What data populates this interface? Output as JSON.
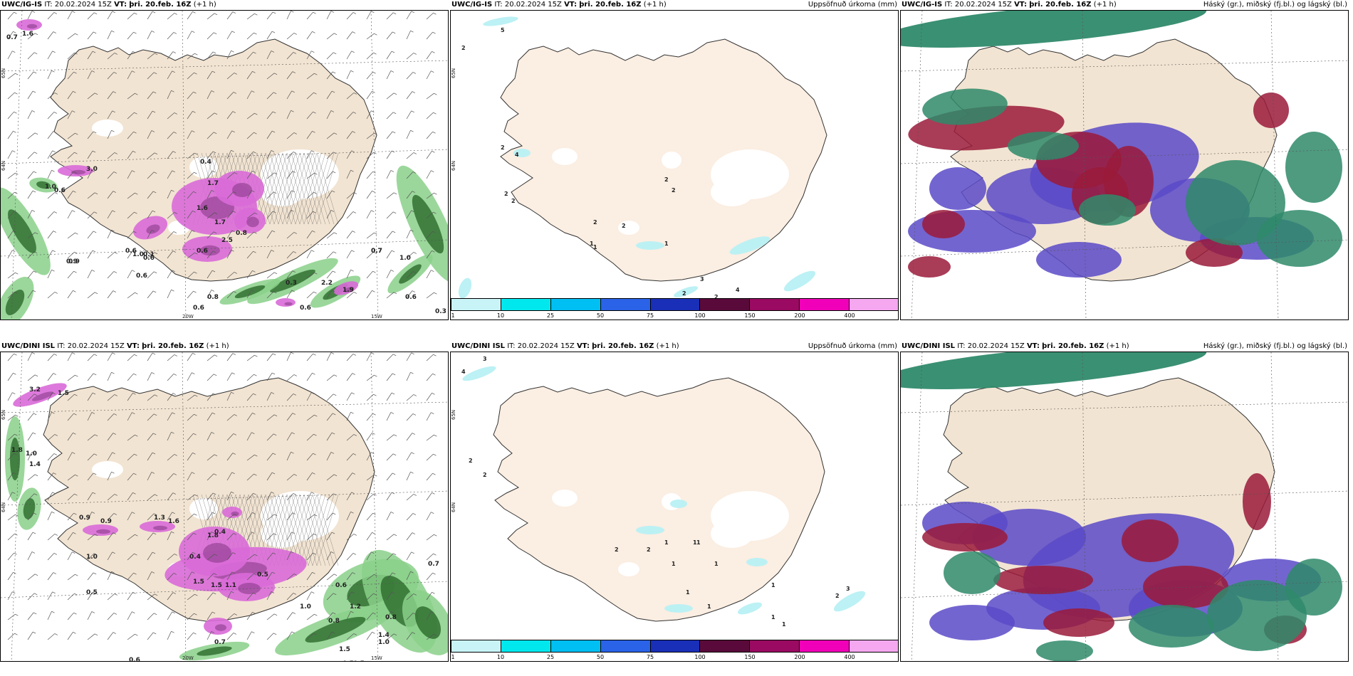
{
  "panels": [
    {
      "id": "p1",
      "model": "UWC/IG-IS",
      "it_label": "IT:",
      "it_value": "20.02.2024 15Z",
      "vt_label": "VT:",
      "vt_value": "þri. 20.feb. 16Z",
      "lead": "(+1 h)",
      "right_title": "",
      "kind": "precip-wind",
      "labels": [
        "0.7",
        "1.6",
        "3.0",
        "1.0",
        "0.6",
        "0.9",
        "0.6",
        "0.1",
        "0.4",
        "1.7",
        "1.6",
        "0.6",
        "1.7",
        "0.8",
        "2.5",
        "1.0",
        "0.6",
        "0.9",
        "0.6",
        "0.8",
        "0.3",
        "2.2",
        "1.9",
        "0.7",
        "1.0",
        "0.7",
        "0.6",
        "0.6",
        "0.3",
        "0.6"
      ],
      "coords": [
        "65N",
        "64N",
        "20W",
        "15W"
      ]
    },
    {
      "id": "p2",
      "model": "UWC/IG-IS",
      "it_label": "IT:",
      "it_value": "20.02.2024 15Z",
      "vt_label": "VT:",
      "vt_value": "þri. 20.feb. 16Z",
      "lead": "(+1 h)",
      "right_title": "Uppsöfnuð úrkoma (mm)",
      "kind": "accum",
      "labels": [
        "5",
        "2",
        "2",
        "4",
        "2",
        "2",
        "2",
        "2",
        "1",
        "1",
        "2",
        "2",
        "1",
        "3",
        "4",
        "2",
        "2",
        "2"
      ],
      "coords": [
        "65N",
        "64N"
      ]
    },
    {
      "id": "p3",
      "model": "UWC/IG-IS",
      "it_label": "IT:",
      "it_value": "20.02.2024 15Z",
      "vt_label": "VT:",
      "vt_value": "þri. 20.feb. 16Z",
      "lead": "(+1 h)",
      "right_title": "Háský (gr.), miðský (fj.bl.) og lágský (bl.)",
      "kind": "cloud"
    },
    {
      "id": "p4",
      "model": "UWC/DINI ISL",
      "it_label": "IT:",
      "it_value": "20.02.2024 15Z",
      "vt_label": "VT:",
      "vt_value": "þri. 20.feb. 16Z",
      "lead": "(+1 h)",
      "right_title": "",
      "kind": "precip-wind",
      "labels": [
        "3.2",
        "1.5",
        "1.8",
        "1.0",
        "1.4",
        "0.9",
        "0.9",
        "1.3",
        "1.6",
        "1.0",
        "0.4",
        "1.8",
        "0.5",
        "0.4",
        "1.5",
        "1.1",
        "1.5",
        "0.5",
        "0.7",
        "1.0",
        "1.2",
        "0.8",
        "1.4",
        "0.6",
        "0.5",
        "1.0",
        "0.6",
        "0.8",
        "1.5",
        "0.7",
        "0.5",
        "0.6"
      ],
      "coords": [
        "65N",
        "64N",
        "20W",
        "15W"
      ]
    },
    {
      "id": "p5",
      "model": "UWC/DINI ISL",
      "it_label": "IT:",
      "it_value": "20.02.2024 15Z",
      "vt_label": "VT:",
      "vt_value": "þri. 20.feb. 16Z",
      "lead": "(+1 h)",
      "right_title": "Uppsöfnuð úrkoma (mm)",
      "kind": "accum",
      "labels": [
        "3",
        "4",
        "2",
        "2",
        "2",
        "2",
        "1",
        "1",
        "1",
        "1",
        "1",
        "1",
        "1",
        "1",
        "1",
        "1",
        "2",
        "3"
      ],
      "coords": [
        "65N",
        "64N"
      ]
    },
    {
      "id": "p6",
      "model": "UWC/DINI ISL",
      "it_label": "IT:",
      "it_value": "20.02.2024 15Z",
      "vt_label": "VT:",
      "vt_value": "þri. 20.feb. 16Z",
      "lead": "(+1 h)",
      "right_title": "Háský (gr.), miðský (fj.bl.) og lágský (bl.)",
      "kind": "cloud"
    }
  ],
  "colorbar": {
    "labels": [
      "1",
      "10",
      "25",
      "50",
      "75",
      "100",
      "150",
      "200",
      "400"
    ],
    "colors": [
      "#c9f4f7",
      "#00e8ee",
      "#00bff2",
      "#2a63e8",
      "#1a2fb8",
      "#5a0a3a",
      "#9a0a62",
      "#f000b8",
      "#f5a8f0"
    ]
  },
  "colors": {
    "land": "#f2e4d2",
    "land_light": "#fbeee2",
    "precip_pink": "#d96ad8",
    "precip_purple": "#8a3c8a",
    "precip_green": "#8ad08a",
    "precip_darkgreen": "#2a6a2a",
    "cloud_green": "#2f8a6a",
    "cloud_red": "#9a1a3a",
    "cloud_blue": "#5a4ac8"
  }
}
